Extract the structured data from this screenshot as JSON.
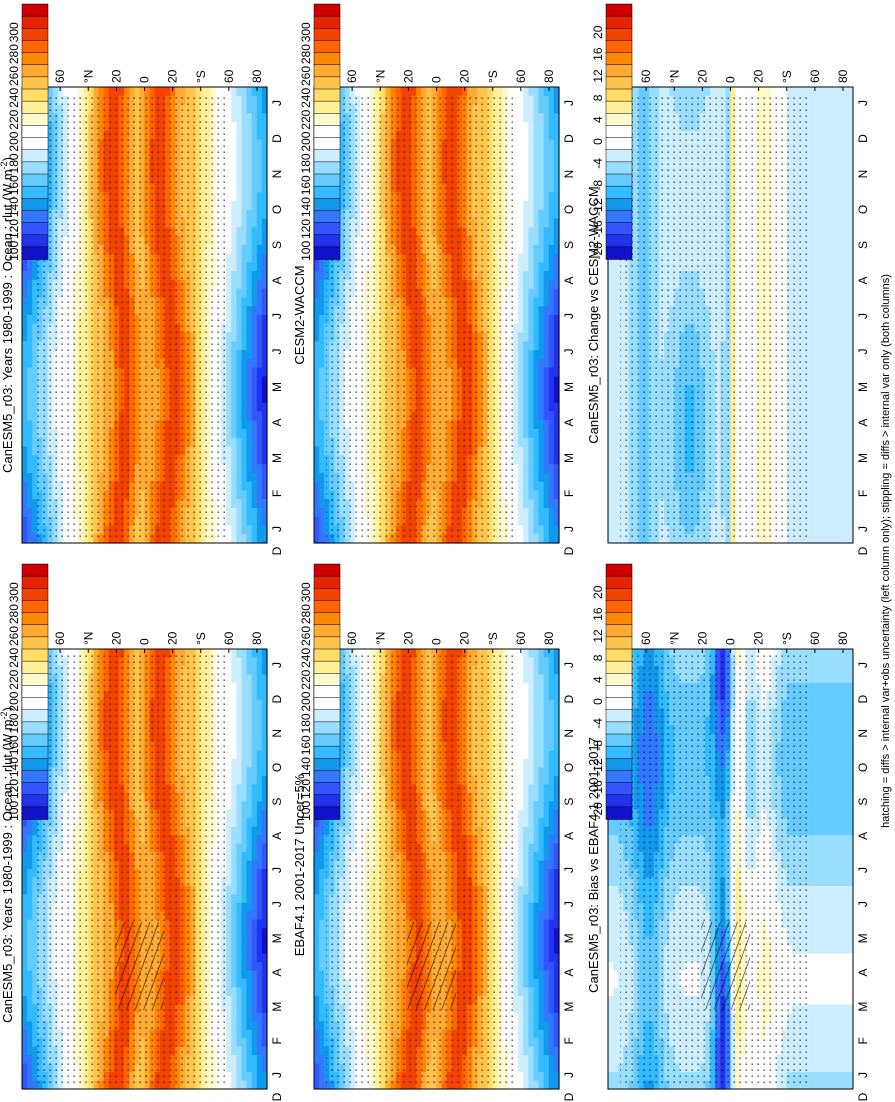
{
  "footer_note": "hatching = diffs > internal var+obs uncertainty (left column only); stippling = diffs > internal var only (both columns)",
  "chart_data": [
    {
      "type": "heatmap",
      "title": "CanESM5_r03: Years 1980-1999 : Ocean : rlut (W m",
      "title_sup": "-2",
      "title_end": ")",
      "months": [
        "J",
        "F",
        "M",
        "A",
        "M",
        "J",
        "J",
        "A",
        "S",
        "O",
        "N",
        "D",
        "J"
      ],
      "lat_labels": [
        "80",
        "60",
        "°N",
        "20",
        "0",
        "20",
        "°S",
        "60",
        "80"
      ],
      "month_axis_corner": "D",
      "colorbar": [
        "300",
        "280",
        "260",
        "240",
        "220",
        "200",
        "180",
        "160",
        "140",
        "120",
        "100"
      ],
      "field": "abs",
      "stipple": true,
      "hatch": true
    },
    {
      "type": "heatmap",
      "title": "CanESM5_r03: Years 1980-1999 : Ocean : rlut (W m",
      "title_sup": "-2",
      "title_end": ")",
      "months": [
        "J",
        "F",
        "M",
        "A",
        "M",
        "J",
        "J",
        "A",
        "S",
        "O",
        "N",
        "D",
        "J"
      ],
      "lat_labels": [
        "80",
        "60",
        "°N",
        "20",
        "0",
        "20",
        "°S",
        "60",
        "80"
      ],
      "month_axis_corner": "D",
      "colorbar": [
        "300",
        "280",
        "260",
        "240",
        "220",
        "200",
        "180",
        "160",
        "140",
        "120",
        "100"
      ],
      "field": "abs",
      "stipple": true,
      "hatch": false
    },
    {
      "type": "heatmap",
      "title": "EBAF4.1 2001-2017 Uncer=5%",
      "months": [
        "J",
        "F",
        "M",
        "A",
        "M",
        "J",
        "J",
        "A",
        "S",
        "O",
        "N",
        "D",
        "J"
      ],
      "lat_labels": [
        "80",
        "60",
        "°N",
        "20",
        "0",
        "20",
        "°S",
        "60",
        "80"
      ],
      "month_axis_corner": "D",
      "colorbar": [
        "300",
        "280",
        "260",
        "240",
        "220",
        "200",
        "180",
        "160",
        "140",
        "120",
        "100"
      ],
      "field": "abs",
      "stipple": true,
      "hatch": true
    },
    {
      "type": "heatmap",
      "title": "CESM2-WACCM",
      "months": [
        "J",
        "F",
        "M",
        "A",
        "M",
        "J",
        "J",
        "A",
        "S",
        "O",
        "N",
        "D",
        "J"
      ],
      "lat_labels": [
        "80",
        "60",
        "°N",
        "20",
        "0",
        "20",
        "°S",
        "60",
        "80"
      ],
      "month_axis_corner": "D",
      "colorbar": [
        "300",
        "280",
        "260",
        "240",
        "220",
        "200",
        "180",
        "160",
        "140",
        "120",
        "100"
      ],
      "field": "abs",
      "stipple": true,
      "hatch": false
    },
    {
      "type": "heatmap",
      "title": "CanESM5_r03: Bias vs EBAF4.1 2001-2017",
      "months": [
        "J",
        "F",
        "M",
        "A",
        "M",
        "J",
        "J",
        "A",
        "S",
        "O",
        "N",
        "D",
        "J"
      ],
      "lat_labels": [
        "80",
        "60",
        "°N",
        "20",
        "0",
        "20",
        "°S",
        "60",
        "80"
      ],
      "month_axis_corner": "D",
      "colorbar": [
        "20",
        "16",
        "12",
        "8",
        "4",
        "0",
        "-4",
        "-8",
        "-12",
        "-16",
        "-20"
      ],
      "field": "bias",
      "stipple": true,
      "hatch": true
    },
    {
      "type": "heatmap",
      "title": "CanESM5_r03: Change vs CESM2-WACCM",
      "months": [
        "J",
        "F",
        "M",
        "A",
        "M",
        "J",
        "J",
        "A",
        "S",
        "O",
        "N",
        "D",
        "J"
      ],
      "lat_labels": [
        "80",
        "60",
        "°N",
        "20",
        "0",
        "20",
        "°S",
        "60",
        "80"
      ],
      "month_axis_corner": "D",
      "colorbar": [
        "20",
        "16",
        "12",
        "8",
        "4",
        "0",
        "-4",
        "-8",
        "-12",
        "-16",
        "-20"
      ],
      "field": "change",
      "stipple": true,
      "hatch": false
    }
  ],
  "colors": {
    "abs_scale": [
      "#cc0000",
      "#e62200",
      "#f24400",
      "#ff6600",
      "#ff8800",
      "#ffaa33",
      "#ffc44d",
      "#ffdd66",
      "#fff099",
      "#fffacc",
      "#ffffff",
      "#ffffff",
      "#cceeff",
      "#99ddff",
      "#66ccff",
      "#33bbff",
      "#1199ee",
      "#3377ff",
      "#3355ff",
      "#2233ee",
      "#1111cc"
    ],
    "diff_scale": [
      "#cc0000",
      "#e62200",
      "#f24400",
      "#ff6600",
      "#ff8800",
      "#ffaa33",
      "#ffc44d",
      "#ffdd66",
      "#fff099",
      "#fffacc",
      "#ffffff",
      "#ffffff",
      "#cceeff",
      "#99ddff",
      "#66ccff",
      "#33bbff",
      "#1199ee",
      "#3377ff",
      "#3355ff",
      "#2233ee",
      "#1111cc"
    ]
  }
}
